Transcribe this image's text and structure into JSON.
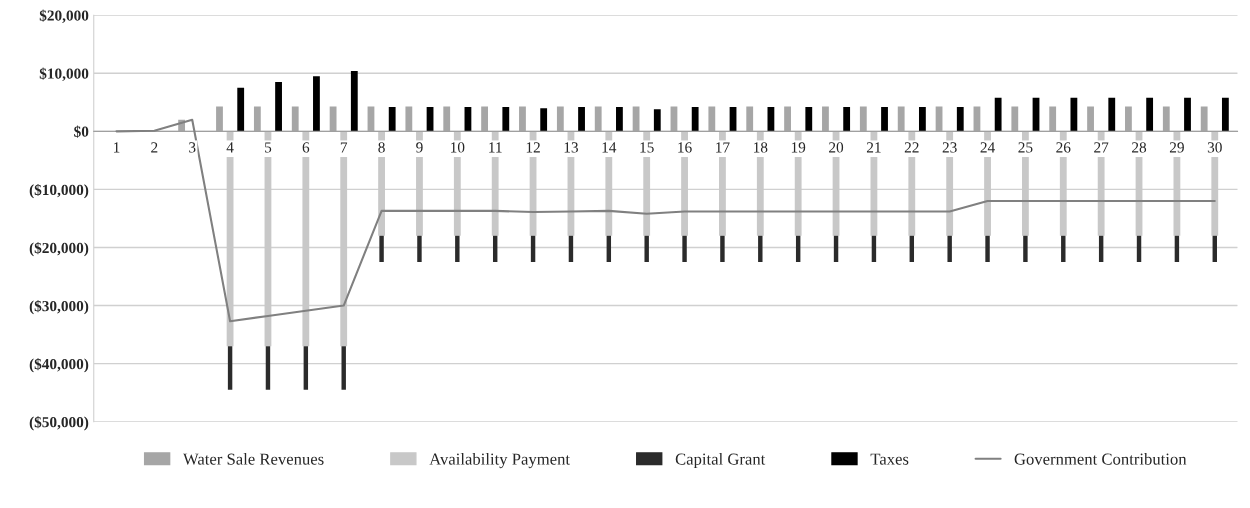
{
  "chart_data": {
    "type": "bar",
    "categories": [
      "1",
      "2",
      "3",
      "4",
      "5",
      "6",
      "7",
      "8",
      "9",
      "10",
      "11",
      "12",
      "13",
      "14",
      "15",
      "16",
      "17",
      "18",
      "19",
      "20",
      "21",
      "22",
      "23",
      "24",
      "25",
      "26",
      "27",
      "28",
      "29",
      "30"
    ],
    "series": [
      {
        "name": "Water Sale Revenues",
        "color": "#a6a6a6",
        "values": [
          null,
          null,
          2000,
          4300,
          4300,
          4300,
          4300,
          4300,
          4300,
          4300,
          4300,
          4300,
          4300,
          4300,
          4300,
          4300,
          4300,
          4300,
          4300,
          4300,
          4300,
          4300,
          4300,
          4300,
          4300,
          4300,
          4300,
          4300,
          4300,
          4300
        ]
      },
      {
        "name": "Availability Payment",
        "color": "#c8c8c8",
        "values": [
          null,
          null,
          null,
          -37000,
          -37000,
          -37000,
          -37000,
          -18000,
          -18000,
          -18000,
          -18000,
          -18000,
          -18000,
          -18000,
          -18000,
          -18000,
          -18000,
          -18000,
          -18000,
          -18000,
          -18000,
          -18000,
          -18000,
          -18000,
          -18000,
          -18000,
          -18000,
          -18000,
          -18000,
          -18000
        ]
      },
      {
        "name": "Capital Grant",
        "color": "#2b2b2b",
        "base": [
          null,
          null,
          null,
          -37000,
          -37000,
          -37000,
          -37000,
          -18000,
          -18000,
          -18000,
          -18000,
          -18000,
          -18000,
          -18000,
          -18000,
          -18000,
          -18000,
          -18000,
          -18000,
          -18000,
          -18000,
          -18000,
          -18000,
          -18000,
          -18000,
          -18000,
          -18000,
          -18000,
          -18000,
          -18000
        ],
        "values": [
          null,
          null,
          null,
          -7500,
          -7500,
          -7500,
          -7500,
          -4500,
          -4500,
          -4500,
          -4500,
          -4500,
          -4500,
          -4500,
          -4500,
          -4500,
          -4500,
          -4500,
          -4500,
          -4500,
          -4500,
          -4500,
          -4500,
          -4500,
          -4500,
          -4500,
          -4500,
          -4500,
          -4500,
          -4500
        ]
      },
      {
        "name": "Taxes",
        "color": "#000000",
        "values": [
          null,
          null,
          null,
          7500,
          8500,
          9500,
          10400,
          4200,
          4200,
          4200,
          4200,
          4000,
          4200,
          4200,
          3800,
          4200,
          4200,
          4200,
          4200,
          4200,
          4200,
          4200,
          4200,
          5800,
          5800,
          5800,
          5800,
          5800,
          5800,
          5800
        ]
      },
      {
        "name": "Government Contribution",
        "type": "line",
        "color": "#808080",
        "values": [
          0,
          100,
          2000,
          -32700,
          -31800,
          -30900,
          -30000,
          -13700,
          -13700,
          -13700,
          -13700,
          -13900,
          -13800,
          -13700,
          -14200,
          -13800,
          -13800,
          -13800,
          -13800,
          -13800,
          -13800,
          -13800,
          -13800,
          -12000,
          -12000,
          -12000,
          -12000,
          -12000,
          -12000,
          -12000
        ]
      }
    ],
    "ylim": [
      -50000,
      20000
    ],
    "yticks": [
      {
        "value": -50000,
        "label": "($50,000)"
      },
      {
        "value": -40000,
        "label": "($40,000)"
      },
      {
        "value": -30000,
        "label": "($30,000)"
      },
      {
        "value": -20000,
        "label": "($20,000)"
      },
      {
        "value": -10000,
        "label": "($10,000)"
      },
      {
        "value": 0,
        "label": "$0"
      },
      {
        "value": 10000,
        "label": "$10,000"
      },
      {
        "value": 20000,
        "label": "$20,000"
      }
    ],
    "grid": "y",
    "legend": "bottom",
    "marker": "none",
    "line_style": "solid"
  }
}
